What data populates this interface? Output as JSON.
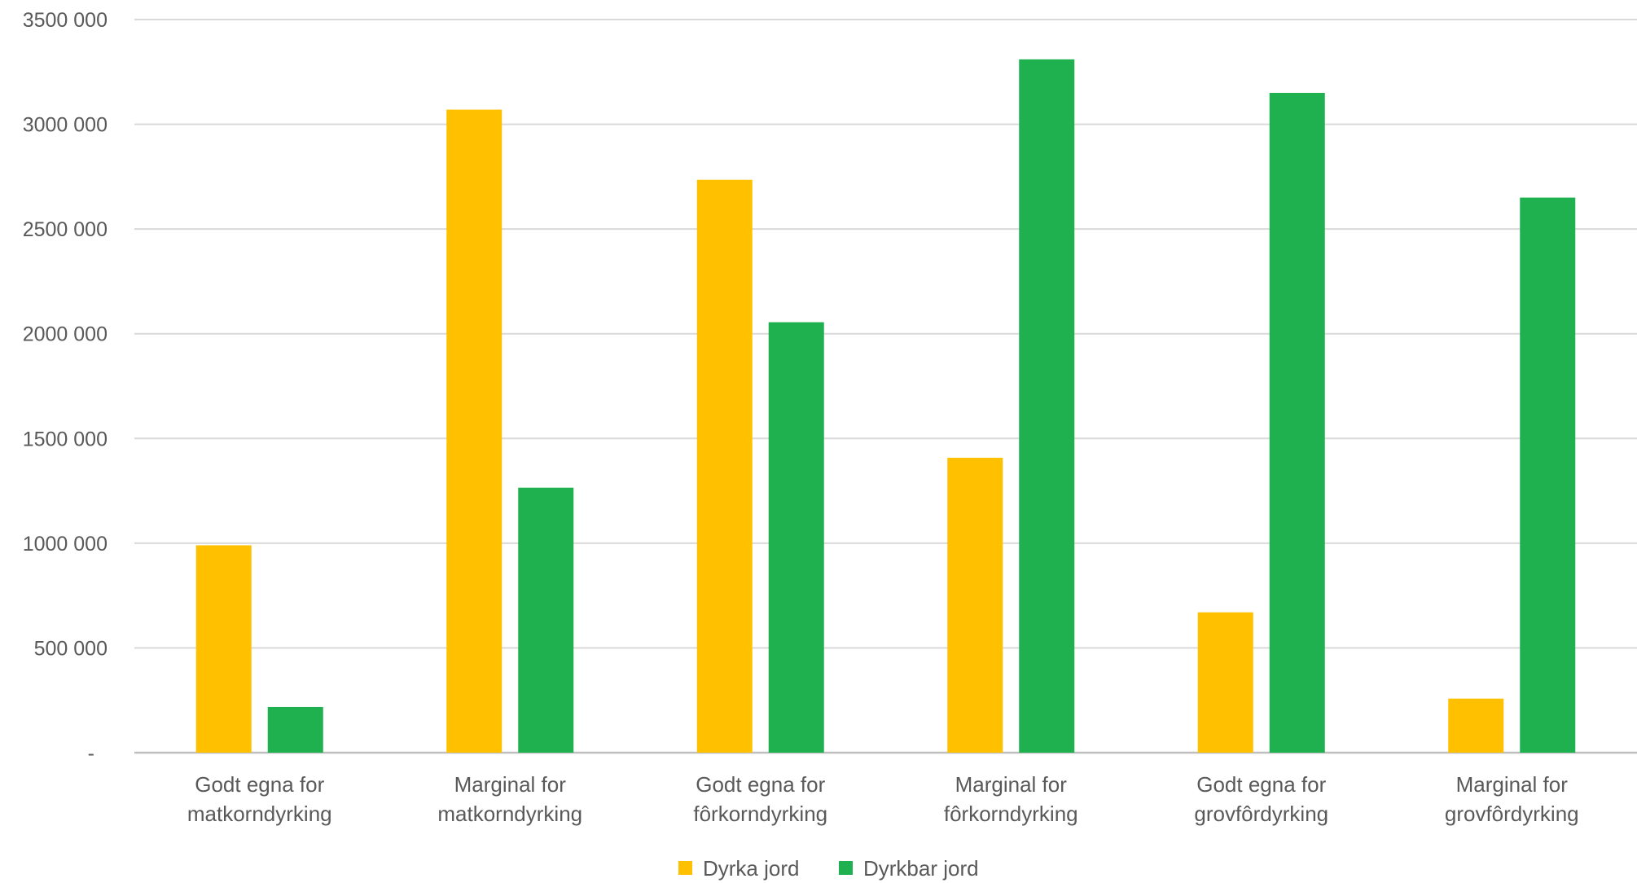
{
  "chart_data": {
    "type": "bar",
    "categories": [
      [
        "Godt egna for",
        "matkorndyrking"
      ],
      [
        "Marginal for",
        "matkorndyrking"
      ],
      [
        "Godt egna for",
        "fôrkorndyrking"
      ],
      [
        "Marginal for",
        "fôrkorndyrking"
      ],
      [
        "Godt egna for",
        "grovfôrdyrking"
      ],
      [
        "Marginal for",
        "grovfôrdyrking"
      ]
    ],
    "series": [
      {
        "name": "Dyrka jord",
        "color": "#FFC000",
        "values": [
          990000,
          3070000,
          2735000,
          1408000,
          670000,
          258000
        ]
      },
      {
        "name": "Dyrkbar jord",
        "color": "#1FB050",
        "values": [
          218000,
          1265000,
          2055000,
          3310000,
          3150000,
          2650000
        ]
      }
    ],
    "ylim": [
      0,
      3500000
    ],
    "yticks": [
      {
        "value": 0,
        "label": "-"
      },
      {
        "value": 500000,
        "label": "500 000"
      },
      {
        "value": 1000000,
        "label": "1000 000"
      },
      {
        "value": 1500000,
        "label": "1500 000"
      },
      {
        "value": 2000000,
        "label": "2000 000"
      },
      {
        "value": 2500000,
        "label": "2500 000"
      },
      {
        "value": 3000000,
        "label": "3000 000"
      },
      {
        "value": 3500000,
        "label": "3500 000"
      }
    ],
    "grid": true,
    "legend": "bottom-center",
    "title": "",
    "xlabel": "",
    "ylabel": ""
  }
}
